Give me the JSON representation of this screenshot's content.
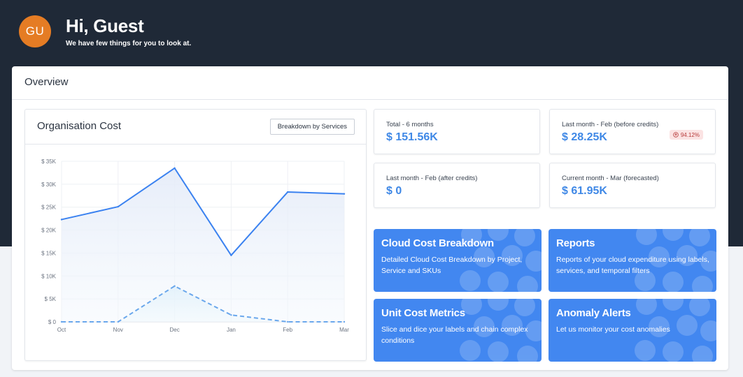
{
  "header": {
    "avatar_initials": "GU",
    "greeting": "Hi, Guest",
    "subtitle": "We have few things for you to look at."
  },
  "overview": {
    "title": "Overview",
    "chart_card": {
      "title": "Organisation Cost",
      "button_label": "Breakdown by Services"
    },
    "stats": [
      {
        "label": "Total - 6 months",
        "value": "$ 151.56K"
      },
      {
        "label": "Last month - Feb (before credits)",
        "value": "$ 28.25K",
        "badge": "94.12%",
        "badge_icon": "arrow-up-circle-icon"
      },
      {
        "label": "Last month - Feb (after credits)",
        "value": "$ 0"
      },
      {
        "label": "Current month - Mar (forecasted)",
        "value": "$ 61.95K"
      }
    ],
    "tiles": [
      {
        "title": "Cloud Cost Breakdown",
        "desc": "Detailed Cloud Cost Breakdown by Project, Service and SKUs"
      },
      {
        "title": "Reports",
        "desc": "Reports of your cloud expenditure using labels, services, and temporal filters"
      },
      {
        "title": "Unit Cost Metrics",
        "desc": "Slice and dice your labels and chain complex conditions"
      },
      {
        "title": "Anomaly Alerts",
        "desc": "Let us monitor your cost anomalies"
      }
    ]
  },
  "colors": {
    "header_bg": "#1f2937",
    "accent": "#3f88e6",
    "tile_bg": "#4287f0",
    "avatar": "#e57c24",
    "badge_bg": "#fbe3e3",
    "badge_text": "#b73b3b"
  },
  "chart_data": {
    "type": "line",
    "categories": [
      "Oct",
      "Nov",
      "Dec",
      "Jan",
      "Feb",
      "Mar"
    ],
    "y_ticks": [
      "$ 0",
      "$ 5K",
      "$ 10K",
      "$ 15K",
      "$ 20K",
      "$ 25K",
      "$ 30K",
      "$ 35K"
    ],
    "ylim": [
      0,
      35000
    ],
    "grid": true,
    "series": [
      {
        "style": "solid",
        "values": [
          22300,
          25100,
          33500,
          14500,
          28300,
          27900
        ]
      },
      {
        "style": "dashed",
        "values": [
          0,
          0,
          7800,
          1500,
          0,
          0
        ]
      }
    ]
  }
}
